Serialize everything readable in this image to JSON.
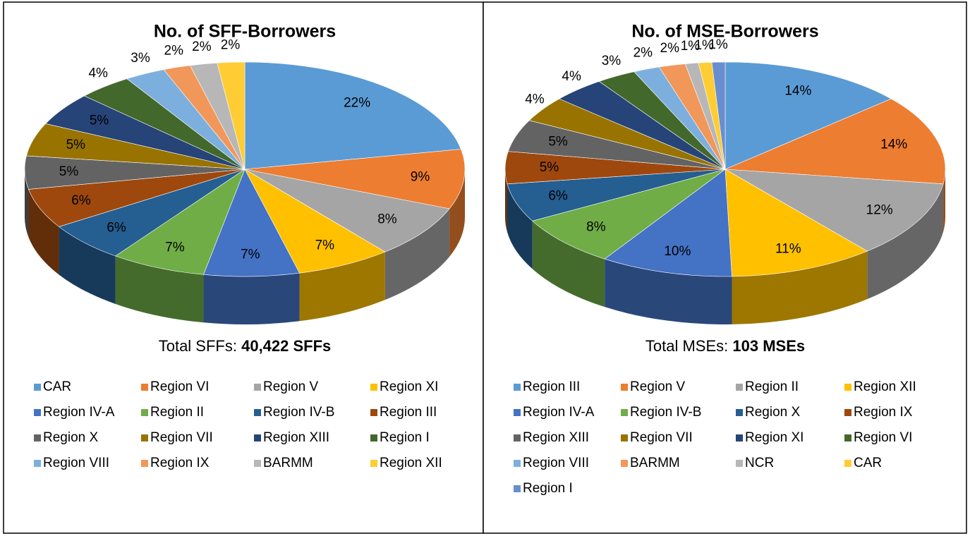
{
  "chart_data": [
    {
      "type": "pie",
      "title": "No. of SFF-Borrowers",
      "total_label": "Total SFFs:",
      "total_value": "40,422 SFFs",
      "labels": [
        "CAR",
        "Region VI",
        "Region V",
        "Region XI",
        "Region IV-A",
        "Region II",
        "Region IV-B",
        "Region III",
        "Region X",
        "Region VII",
        "Region XIII",
        "Region I",
        "Region VIII",
        "Region IX",
        "BARMM",
        "Region XII"
      ],
      "values": [
        22,
        9,
        8,
        7,
        7,
        7,
        6,
        6,
        5,
        5,
        5,
        4,
        3,
        2,
        2,
        2
      ],
      "value_labels": [
        "22%",
        "9%",
        "8%",
        "7%",
        "7%",
        "7%",
        "6%",
        "6%",
        "5%",
        "5%",
        "5%",
        "4%",
        "3%",
        "2%",
        "2%",
        "2%"
      ],
      "colors": [
        "#5B9BD5",
        "#ED7D31",
        "#A5A5A5",
        "#FFC000",
        "#4472C4",
        "#70AD47",
        "#255E91",
        "#9E480E",
        "#636363",
        "#997300",
        "#264478",
        "#43682B",
        "#7CAFDD",
        "#F1975A",
        "#B7B7B7",
        "#FFCD33"
      ],
      "legend": "bottom"
    },
    {
      "type": "pie",
      "title": "No. of MSE-Borrowers",
      "total_label": "Total MSEs:",
      "total_value": "103 MSEs",
      "labels": [
        "Region III",
        "Region V",
        "Region II",
        "Region XII",
        "Region IV-A",
        "Region IV-B",
        "Region X",
        "Region IX",
        "Region XIII",
        "Region VII",
        "Region XI",
        "Region VI",
        "Region VIII",
        "BARMM",
        "NCR",
        "CAR",
        "Region I"
      ],
      "values": [
        14,
        14,
        12,
        11,
        10,
        8,
        6,
        5,
        5,
        4,
        4,
        3,
        2,
        2,
        1,
        1,
        1
      ],
      "value_labels": [
        "14%",
        "14%",
        "12%",
        "11%",
        "10%",
        "8%",
        "6%",
        "5%",
        "5%",
        "4%",
        "4%",
        "3%",
        "2%",
        "2%",
        "1%",
        "1%",
        "1%"
      ],
      "colors": [
        "#5B9BD5",
        "#ED7D31",
        "#A5A5A5",
        "#FFC000",
        "#4472C4",
        "#70AD47",
        "#255E91",
        "#9E480E",
        "#636363",
        "#997300",
        "#264478",
        "#43682B",
        "#7CAFDD",
        "#F1975A",
        "#B7B7B7",
        "#FFCD33",
        "#698ED0"
      ],
      "legend": "bottom"
    }
  ]
}
